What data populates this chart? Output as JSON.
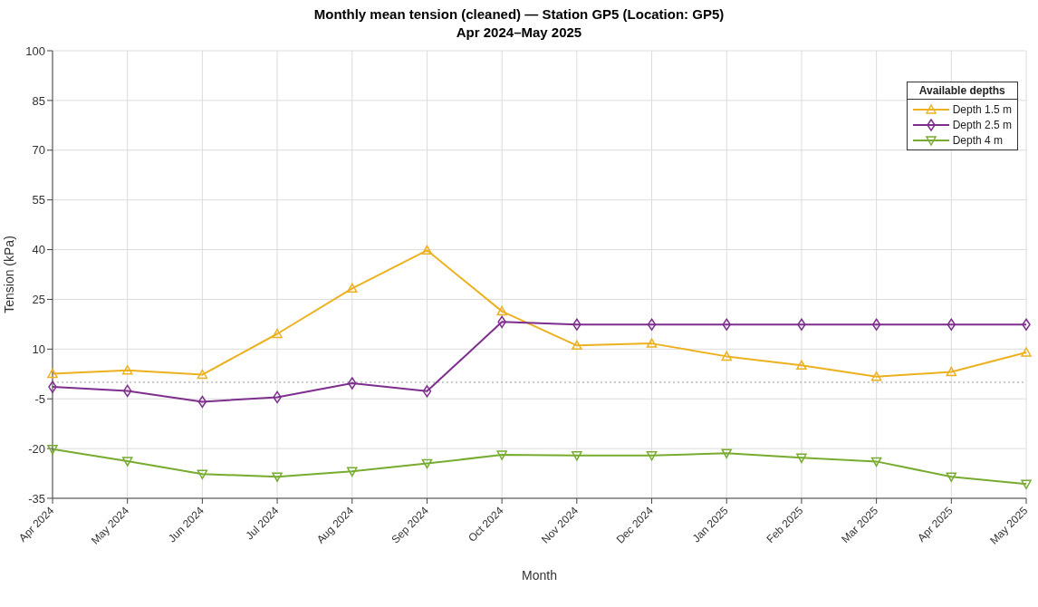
{
  "chart_data": {
    "type": "line",
    "title": "Monthly mean tension (cleaned) — Station GP5 (Location: GP5)",
    "subtitle": "Apr 2024–May 2025",
    "xlabel": "Month",
    "ylabel": "Tension (kPa)",
    "legend_title": "Available depths",
    "categories": [
      "Apr 2024",
      "May 2024",
      "Jun 2024",
      "Jul 2024",
      "Aug 2024",
      "Sep 2024",
      "Oct 2024",
      "Nov 2024",
      "Dec 2024",
      "Jan 2025",
      "Feb 2025",
      "Mar 2025",
      "Apr 2025",
      "May 2025"
    ],
    "series": [
      {
        "name": "Depth 1.5 m",
        "color": "#edb120",
        "marker": "triangle",
        "values": [
          2.6,
          3.6,
          2.3,
          14.6,
          28.3,
          39.8,
          21.4,
          11.1,
          11.7,
          7.8,
          5.1,
          1.7,
          3.1,
          9.0
        ]
      },
      {
        "name": "Depth 2.5 m",
        "color": "#7e2f8e",
        "marker": "diamond",
        "values": [
          -1.4,
          -2.6,
          -5.9,
          -4.5,
          -0.3,
          -2.7,
          18.2,
          17.4,
          17.4,
          17.4,
          17.4,
          17.4,
          17.4,
          17.4
        ]
      },
      {
        "name": "Depth 4 m",
        "color": "#77ac30",
        "marker": "triangle-down",
        "values": [
          -20.2,
          -23.8,
          -27.7,
          -28.5,
          -26.9,
          -24.5,
          -21.9,
          -22.1,
          -22.1,
          -21.4,
          -22.8,
          -23.9,
          -28.5,
          -30.7
        ]
      }
    ],
    "ylim": [
      -35,
      100
    ],
    "yticks": [
      -35,
      -20,
      -5,
      10,
      25,
      40,
      55,
      70,
      85,
      100
    ],
    "grid": true,
    "legend": "top right",
    "line_style": "solid",
    "ref_lines": [
      {
        "axis": "y",
        "value": 0,
        "label": null,
        "color": "#999999",
        "line_style": "dotted"
      }
    ]
  }
}
